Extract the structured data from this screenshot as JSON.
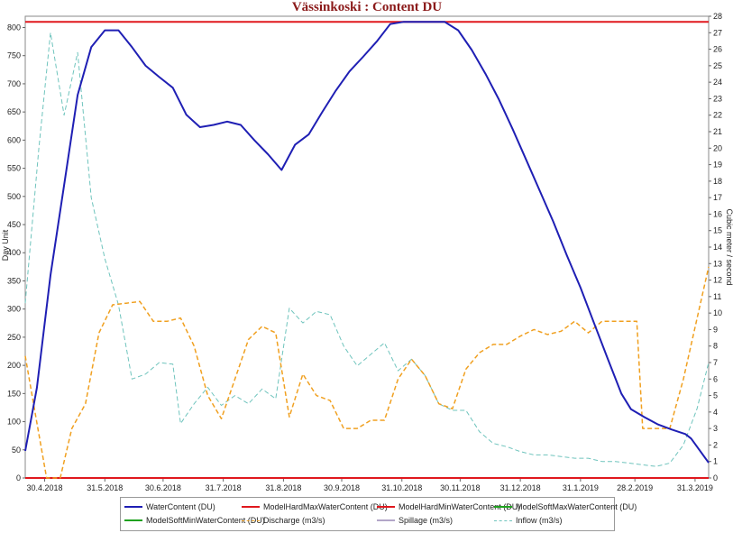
{
  "chart_data": {
    "type": "line",
    "title": "Vässinkoski : Content DU",
    "ylabel": "Day Unit",
    "y2label": "Cubic meter / second",
    "ylim": [
      0,
      820
    ],
    "y2lim": [
      0,
      28
    ],
    "yticks": [
      0,
      50,
      100,
      150,
      200,
      250,
      300,
      350,
      400,
      450,
      500,
      550,
      600,
      650,
      700,
      750,
      800
    ],
    "y2ticks": [
      0,
      1,
      2,
      3,
      4,
      5,
      6,
      7,
      8,
      9,
      10,
      11,
      12,
      13,
      14,
      15,
      16,
      17,
      18,
      19,
      20,
      21,
      22,
      23,
      24,
      25,
      26,
      27,
      28
    ],
    "xlim": [
      "2018-04-20",
      "2019-04-07"
    ],
    "xticks": [
      {
        "date": "2018-04-30",
        "label": "30.4.2018"
      },
      {
        "date": "2018-05-31",
        "label": "31.5.2018"
      },
      {
        "date": "2018-06-30",
        "label": "30.6.2018"
      },
      {
        "date": "2018-07-31",
        "label": "31.7.2018"
      },
      {
        "date": "2018-08-31",
        "label": "31.8.2018"
      },
      {
        "date": "2018-09-30",
        "label": "30.9.2018"
      },
      {
        "date": "2018-10-31",
        "label": "31.10.2018"
      },
      {
        "date": "2018-11-30",
        "label": "30.11.2018"
      },
      {
        "date": "2018-12-31",
        "label": "31.12.2018"
      },
      {
        "date": "2019-01-31",
        "label": "31.1.2019"
      },
      {
        "date": "2019-02-28",
        "label": "28.2.2019"
      },
      {
        "date": "2019-03-31",
        "label": "31.3.2019"
      }
    ],
    "series": [
      {
        "name": "WaterContent (DU)",
        "axis": "left",
        "color": "#1f1fb4",
        "dash": "solid",
        "width": 2,
        "points": [
          [
            "2018-04-20",
            48
          ],
          [
            "2018-04-26",
            160
          ],
          [
            "2018-05-03",
            360
          ],
          [
            "2018-05-10",
            520
          ],
          [
            "2018-05-17",
            680
          ],
          [
            "2018-05-24",
            765
          ],
          [
            "2018-05-31",
            795
          ],
          [
            "2018-06-07",
            795
          ],
          [
            "2018-06-14",
            765
          ],
          [
            "2018-06-21",
            732
          ],
          [
            "2018-06-28",
            712
          ],
          [
            "2018-07-05",
            693
          ],
          [
            "2018-07-12",
            645
          ],
          [
            "2018-07-19",
            623
          ],
          [
            "2018-07-26",
            627
          ],
          [
            "2018-08-02",
            633
          ],
          [
            "2018-08-09",
            627
          ],
          [
            "2018-08-16",
            600
          ],
          [
            "2018-08-23",
            575
          ],
          [
            "2018-08-30",
            547
          ],
          [
            "2018-09-06",
            592
          ],
          [
            "2018-09-13",
            610
          ],
          [
            "2018-09-20",
            650
          ],
          [
            "2018-09-27",
            688
          ],
          [
            "2018-10-04",
            722
          ],
          [
            "2018-10-11",
            748
          ],
          [
            "2018-10-18",
            775
          ],
          [
            "2018-10-25",
            806
          ],
          [
            "2018-11-01",
            810
          ],
          [
            "2018-11-22",
            810
          ],
          [
            "2018-11-29",
            795
          ],
          [
            "2018-12-06",
            760
          ],
          [
            "2018-12-13",
            718
          ],
          [
            "2018-12-20",
            672
          ],
          [
            "2018-12-27",
            620
          ],
          [
            "2019-01-03",
            565
          ],
          [
            "2019-01-10",
            510
          ],
          [
            "2019-01-17",
            455
          ],
          [
            "2019-01-24",
            395
          ],
          [
            "2019-01-31",
            338
          ],
          [
            "2019-02-07",
            275
          ],
          [
            "2019-02-14",
            212
          ],
          [
            "2019-02-21",
            150
          ],
          [
            "2019-02-26",
            122
          ],
          [
            "2019-03-05",
            108
          ],
          [
            "2019-03-12",
            95
          ],
          [
            "2019-03-19",
            86
          ],
          [
            "2019-03-26",
            78
          ],
          [
            "2019-03-29",
            70
          ],
          [
            "2019-04-07",
            27
          ]
        ]
      },
      {
        "name": "ModelHardMaxWaterContent (DU)",
        "axis": "left",
        "color": "#e0181e",
        "dash": "solid",
        "width": 2,
        "points": [
          [
            "2018-04-20",
            810
          ],
          [
            "2019-04-07",
            810
          ]
        ]
      },
      {
        "name": "ModelHardMinWaterContent (DU)",
        "axis": "left",
        "color": "#e0181e",
        "dash": "solid",
        "width": 2,
        "points": [
          [
            "2018-04-20",
            0
          ],
          [
            "2019-04-07",
            0
          ]
        ]
      },
      {
        "name": "ModelSoftMaxWaterContent (DU)",
        "axis": "left",
        "color": "#1fa21f",
        "dash": "solid",
        "width": 2,
        "points": []
      },
      {
        "name": "ModelSoftMinWaterContent (DU)",
        "axis": "left",
        "color": "#1fa21f",
        "dash": "solid",
        "width": 2,
        "points": []
      },
      {
        "name": "Discharge (m3/s)",
        "axis": "right",
        "color": "#f0a020",
        "dash": "5,3",
        "width": 1.5,
        "points": [
          [
            "2018-04-20",
            7.4
          ],
          [
            "2018-04-25",
            4.0
          ],
          [
            "2018-05-01",
            0.0
          ],
          [
            "2018-05-08",
            0.0
          ],
          [
            "2018-05-14",
            3.0
          ],
          [
            "2018-05-21",
            4.5
          ],
          [
            "2018-05-28",
            8.8
          ],
          [
            "2018-06-04",
            10.5
          ],
          [
            "2018-06-11",
            10.6
          ],
          [
            "2018-06-18",
            10.7
          ],
          [
            "2018-06-25",
            9.5
          ],
          [
            "2018-07-02",
            9.5
          ],
          [
            "2018-07-09",
            9.7
          ],
          [
            "2018-07-16",
            8.0
          ],
          [
            "2018-07-23",
            5.0
          ],
          [
            "2018-07-30",
            3.6
          ],
          [
            "2018-08-06",
            6.0
          ],
          [
            "2018-08-13",
            8.4
          ],
          [
            "2018-08-20",
            9.2
          ],
          [
            "2018-08-27",
            8.8
          ],
          [
            "2018-09-03",
            3.7
          ],
          [
            "2018-09-10",
            6.3
          ],
          [
            "2018-09-17",
            5.0
          ],
          [
            "2018-09-24",
            4.7
          ],
          [
            "2018-10-01",
            3.0
          ],
          [
            "2018-10-08",
            3.0
          ],
          [
            "2018-10-15",
            3.5
          ],
          [
            "2018-10-22",
            3.5
          ],
          [
            "2018-10-29",
            6.0
          ],
          [
            "2018-11-05",
            7.2
          ],
          [
            "2018-11-12",
            6.2
          ],
          [
            "2018-11-19",
            4.5
          ],
          [
            "2018-11-26",
            4.2
          ],
          [
            "2018-12-03",
            6.6
          ],
          [
            "2018-12-10",
            7.6
          ],
          [
            "2018-12-17",
            8.1
          ],
          [
            "2018-12-24",
            8.1
          ],
          [
            "2018-12-31",
            8.6
          ],
          [
            "2019-01-07",
            9.0
          ],
          [
            "2019-01-14",
            8.7
          ],
          [
            "2019-01-21",
            8.9
          ],
          [
            "2019-01-28",
            9.5
          ],
          [
            "2019-02-04",
            8.8
          ],
          [
            "2019-02-11",
            9.5
          ],
          [
            "2019-03-01",
            9.5
          ],
          [
            "2019-03-04",
            3.0
          ],
          [
            "2019-03-18",
            3.0
          ],
          [
            "2019-03-25",
            6.0
          ],
          [
            "2019-04-07",
            12.8
          ]
        ]
      },
      {
        "name": "Spillage (m3/s)",
        "axis": "right",
        "color": "#b3a6c8",
        "dash": "solid",
        "width": 1,
        "points": []
      },
      {
        "name": "Inflow (m3/s)",
        "axis": "right",
        "color": "#6fc4bd",
        "dash": "5,3",
        "width": 1,
        "points": [
          [
            "2018-04-20",
            10.6
          ],
          [
            "2018-04-27",
            20.0
          ],
          [
            "2018-05-03",
            27.0
          ],
          [
            "2018-05-10",
            22.0
          ],
          [
            "2018-05-17",
            25.8
          ],
          [
            "2018-05-24",
            17.0
          ],
          [
            "2018-05-31",
            13.3
          ],
          [
            "2018-06-07",
            10.5
          ],
          [
            "2018-06-14",
            6.0
          ],
          [
            "2018-06-21",
            6.3
          ],
          [
            "2018-06-28",
            7.0
          ],
          [
            "2018-07-05",
            6.9
          ],
          [
            "2018-07-09",
            3.3
          ],
          [
            "2018-07-16",
            4.5
          ],
          [
            "2018-07-23",
            5.5
          ],
          [
            "2018-07-30",
            4.4
          ],
          [
            "2018-08-06",
            5.0
          ],
          [
            "2018-08-13",
            4.5
          ],
          [
            "2018-08-20",
            5.4
          ],
          [
            "2018-08-27",
            4.8
          ],
          [
            "2018-09-03",
            10.3
          ],
          [
            "2018-09-10",
            9.4
          ],
          [
            "2018-09-17",
            10.1
          ],
          [
            "2018-09-24",
            9.9
          ],
          [
            "2018-10-01",
            8.0
          ],
          [
            "2018-10-08",
            6.8
          ],
          [
            "2018-10-15",
            7.5
          ],
          [
            "2018-10-22",
            8.2
          ],
          [
            "2018-10-29",
            6.5
          ],
          [
            "2018-11-05",
            7.2
          ],
          [
            "2018-11-12",
            6.2
          ],
          [
            "2018-11-19",
            4.5
          ],
          [
            "2018-11-26",
            4.1
          ],
          [
            "2018-12-03",
            4.1
          ],
          [
            "2018-12-10",
            2.8
          ],
          [
            "2018-12-17",
            2.1
          ],
          [
            "2018-12-24",
            1.9
          ],
          [
            "2018-12-31",
            1.6
          ],
          [
            "2019-01-07",
            1.4
          ],
          [
            "2019-01-14",
            1.4
          ],
          [
            "2019-01-21",
            1.3
          ],
          [
            "2019-01-28",
            1.2
          ],
          [
            "2019-02-04",
            1.2
          ],
          [
            "2019-02-11",
            1.0
          ],
          [
            "2019-02-18",
            1.0
          ],
          [
            "2019-02-25",
            0.9
          ],
          [
            "2019-03-04",
            0.8
          ],
          [
            "2019-03-11",
            0.7
          ],
          [
            "2019-03-18",
            0.9
          ],
          [
            "2019-03-25",
            2.0
          ],
          [
            "2019-04-01",
            4.2
          ],
          [
            "2019-04-07",
            7.0
          ]
        ]
      }
    ],
    "grid": false,
    "legend_placement": "bottom"
  }
}
